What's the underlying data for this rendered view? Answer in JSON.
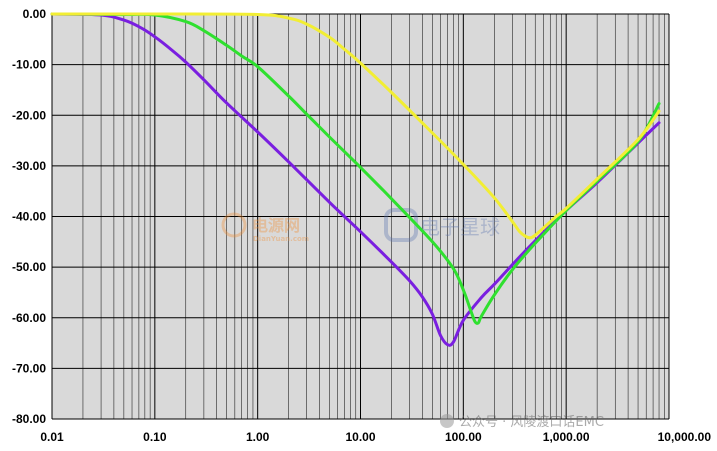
{
  "colors": {
    "plot_bg": "#d9d9d9",
    "grid": "#000000",
    "series_purple": "#7a1fe0",
    "series_green": "#2fe02f",
    "series_yellow": "#f2ee33"
  },
  "watermarks": {
    "logo1_text": "电源网",
    "logo1_url": "DianYuan.com",
    "logo2_text": "电子星球",
    "footer": "公众号 · 风陵渡口话EMC"
  },
  "chart_data": {
    "type": "line",
    "title": "",
    "xlabel": "",
    "ylabel": "",
    "x_scale": "log",
    "xlim": [
      0.01,
      10000
    ],
    "ylim": [
      -80,
      0
    ],
    "grid": true,
    "x_ticks": [
      "0.01",
      "0.10",
      "1.00",
      "10.00",
      "100.00",
      "1,000.00",
      "10,000.00"
    ],
    "y_ticks": [
      "0.00",
      "-10.00",
      "-20.00",
      "-30.00",
      "-40.00",
      "-50.00",
      "-60.00",
      "-70.00",
      "-80.00"
    ],
    "series": [
      {
        "color": "#7a1fe0",
        "x": [
          0.01,
          0.03,
          0.05,
          0.07,
          0.1,
          0.15,
          0.2,
          0.3,
          0.5,
          1,
          2,
          5,
          10,
          20,
          30,
          40,
          50,
          60,
          70,
          80,
          100,
          150,
          200,
          300,
          500,
          1000,
          2000,
          5000,
          8000
        ],
        "y": [
          0,
          -0.2,
          -1.2,
          -2.5,
          -4.5,
          -7.3,
          -9.5,
          -13,
          -17.6,
          -23.3,
          -29.2,
          -37.2,
          -43,
          -49,
          -52.7,
          -55.9,
          -59.3,
          -63.5,
          -65.3,
          -64.8,
          -60.5,
          -56,
          -53.4,
          -49.5,
          -44.8,
          -38.8,
          -33.3,
          -25.5,
          -21.5
        ]
      },
      {
        "color": "#2fe02f",
        "x": [
          0.01,
          0.05,
          0.1,
          0.2,
          0.3,
          0.5,
          0.7,
          1,
          2,
          3,
          5,
          10,
          20,
          50,
          80,
          100,
          120,
          130,
          140,
          150,
          200,
          300,
          500,
          1000,
          2000,
          5000,
          8000
        ],
        "y": [
          0,
          -0.1,
          -0.2,
          -1.5,
          -3.3,
          -6.2,
          -8.3,
          -10.4,
          -16.2,
          -19.8,
          -24.3,
          -30.3,
          -36.5,
          -45,
          -50.3,
          -54.5,
          -59,
          -60.8,
          -61,
          -59.7,
          -55.5,
          -50.5,
          -45.3,
          -38.8,
          -33,
          -25.2,
          -17.7
        ]
      },
      {
        "color": "#f2ee33",
        "x": [
          0.01,
          0.1,
          1,
          2,
          3,
          5,
          7,
          10,
          20,
          50,
          100,
          200,
          300,
          350,
          400,
          450,
          500,
          600,
          800,
          1000,
          2000,
          5000,
          8000
        ],
        "y": [
          0,
          0,
          -0.1,
          -0.8,
          -2,
          -4.6,
          -7,
          -9.7,
          -15.5,
          -23.5,
          -29.7,
          -36.3,
          -41,
          -42.9,
          -43.9,
          -44.2,
          -43.7,
          -42.3,
          -40,
          -38.4,
          -32.6,
          -24.8,
          -19.2
        ]
      }
    ]
  }
}
